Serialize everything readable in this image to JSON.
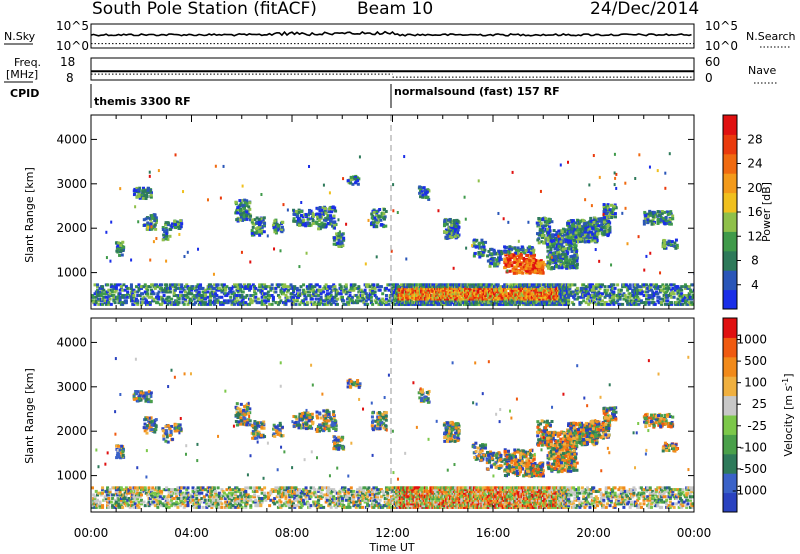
{
  "header": {
    "station": "South Pole Station (fitACF)",
    "beam": "Beam 10",
    "date": "24/Dec/2014"
  },
  "top_panels": {
    "nsky": {
      "label": "N.Sky",
      "left_ticks": [
        "10^5",
        "10^0"
      ],
      "right_label": "N.Search",
      "right_ticks": [
        "10^5",
        "10^0"
      ],
      "solid_level": 0.55,
      "dotted_level": 0.18
    },
    "freq": {
      "label_lines": [
        "Freq.",
        "[MHz]"
      ],
      "left_ticks": [
        "18",
        "8"
      ],
      "right_label": "Nave",
      "right_ticks": [
        "60",
        "0"
      ],
      "solid_level_mhz": 12,
      "dotted_level_nave": 8
    },
    "cpid": {
      "label": "CPID",
      "segments": [
        {
          "name": "themis 3300 RF",
          "start_hour": 0,
          "end_hour": 12
        },
        {
          "name": "normalsound (fast) 157 RF",
          "start_hour": 12,
          "end_hour": 24
        }
      ]
    }
  },
  "chart_data": [
    {
      "type": "heatmap",
      "name": "Power",
      "ylabel": "Slant Range [km]",
      "xlabel": "Time UT",
      "x_range_hours": [
        0,
        24
      ],
      "ylim": [
        180,
        4550
      ],
      "yticks": [
        "1000",
        "2000",
        "3000",
        "4000"
      ],
      "colorbar": {
        "label": "Power [dB]",
        "ticks": [
          "28",
          "24",
          "20",
          "16",
          "12",
          "8",
          "4"
        ],
        "range": [
          0,
          30
        ],
        "colors": [
          "#1a2ee8",
          "#2a56b8",
          "#2e7a5a",
          "#3f9a4a",
          "#8fc04a",
          "#f0c01e",
          "#f39a1a",
          "#f06a10",
          "#ea3a0c",
          "#e01010"
        ]
      }
    },
    {
      "type": "heatmap",
      "name": "Velocity",
      "ylabel": "Slant Range [km]",
      "xlabel": "Time UT",
      "x_range_hours": [
        0,
        24
      ],
      "ylim": [
        180,
        4550
      ],
      "yticks": [
        "1000",
        "2000",
        "3000",
        "4000"
      ],
      "colorbar": {
        "label": "Velocity [m s",
        "label_sup": "-1",
        "label_end": "]",
        "ticks": [
          "1000",
          "500",
          "100",
          "25",
          "-25",
          "-100",
          "-500",
          "-1000"
        ],
        "colors": [
          "#2a42c0",
          "#3a62c8",
          "#2e7a5a",
          "#4aa04a",
          "#7cc84a",
          "#c8c8c8",
          "#f0b040",
          "#f28a1a",
          "#f05a10",
          "#e01010"
        ]
      }
    }
  ],
  "x_axis": {
    "label": "Time UT",
    "ticks": [
      "00:00",
      "04:00",
      "08:00",
      "12:00",
      "16:00",
      "20:00",
      "00:00"
    ]
  }
}
